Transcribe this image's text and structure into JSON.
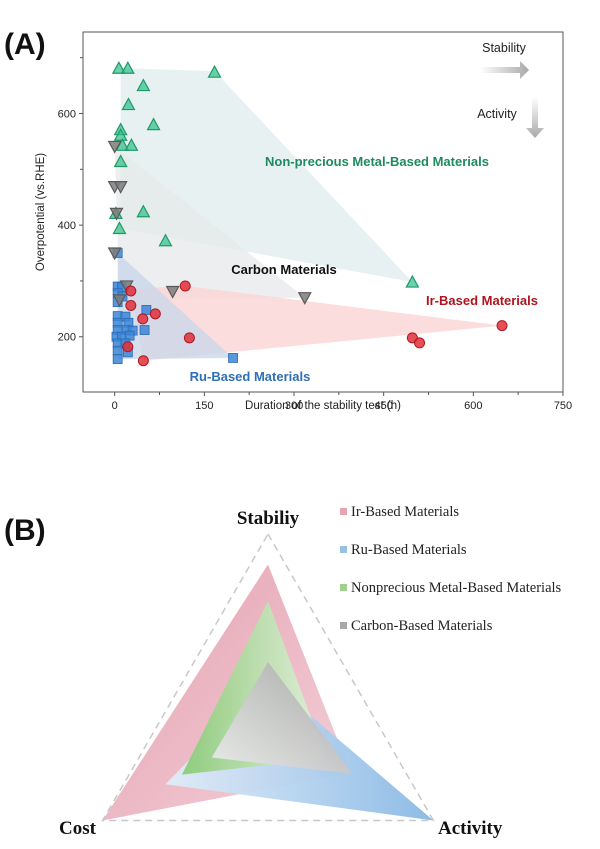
{
  "panels": {
    "a_label": "(A)",
    "b_label": "(B)"
  },
  "chart_data": [
    {
      "type": "scatter",
      "panel": "A",
      "xlabel": "Duration of the stability test (h)",
      "ylabel": "Overpotential (vs.RHE)",
      "xlim": [
        -53,
        750
      ],
      "ylim": [
        101,
        746
      ],
      "xticks": [
        0,
        150,
        300,
        450,
        600,
        750
      ],
      "xtick_labels": [
        "0",
        "150",
        "300",
        "450",
        "600",
        "750"
      ],
      "yticks": [
        200,
        400,
        600
      ],
      "ytick_labels": [
        "200",
        "400",
        "600"
      ],
      "grid": false,
      "annotations": {
        "stability": "Stability",
        "activity": "Activity"
      },
      "series": [
        {
          "name": "Non-precious Metal-Based Materials",
          "label": "Non-precious Metal-Based Materials",
          "marker": "triangle-up",
          "color": "#2fbf87",
          "label_color": "#1f8a5f",
          "region_color": "#e3efee",
          "region": [
            [
              10,
              681
            ],
            [
              167,
              676
            ],
            [
              498,
              298
            ],
            [
              10,
              394
            ]
          ],
          "points": [
            [
              7,
              681
            ],
            [
              22,
              681
            ],
            [
              167,
              674
            ],
            [
              48,
              650
            ],
            [
              23,
              616
            ],
            [
              65,
              580
            ],
            [
              10,
              571
            ],
            [
              10,
              561
            ],
            [
              13,
              543
            ],
            [
              28,
              543
            ],
            [
              10,
              514
            ],
            [
              2,
              421
            ],
            [
              48,
              424
            ],
            [
              8,
              394
            ],
            [
              85,
              372
            ],
            [
              498,
              298
            ]
          ]
        },
        {
          "name": "Carbon Materials",
          "label": "Carbon Materials",
          "marker": "triangle-down",
          "color": "#7d7d7d",
          "label_color": "#111111",
          "region_color": "#e6e8ea",
          "region": [
            [
              0,
              541
            ],
            [
              318,
              270
            ],
            [
              8,
              266
            ]
          ],
          "points": [
            [
              0,
              541
            ],
            [
              0,
              469
            ],
            [
              10,
              469
            ],
            [
              3,
              421
            ],
            [
              0,
              350
            ],
            [
              20,
              291
            ],
            [
              8,
              266
            ],
            [
              97,
              281
            ],
            [
              318,
              270
            ]
          ]
        },
        {
          "name": "Ir-Based Materials",
          "label": "Ir-Based Materials",
          "marker": "circle",
          "color": "#e0303a",
          "label_color": "#b0141e",
          "region_color": "#fbd4d4",
          "region": [
            [
              27,
              286
            ],
            [
              118,
              291
            ],
            [
              648,
              220
            ],
            [
              48,
              157
            ]
          ],
          "points": [
            [
              27,
              282
            ],
            [
              118,
              291
            ],
            [
              27,
              256
            ],
            [
              68,
              241
            ],
            [
              47,
              232
            ],
            [
              125,
              198
            ],
            [
              22,
              182
            ],
            [
              48,
              157
            ],
            [
              498,
              198
            ],
            [
              510,
              189
            ],
            [
              648,
              220
            ]
          ]
        },
        {
          "name": "Ru-Based Materials",
          "label": "Ru-Based Materials",
          "marker": "square",
          "color": "#3d86d6",
          "label_color": "#2f6fb5",
          "region_color": "#c7d6ea",
          "region": [
            [
              5,
              350
            ],
            [
              198,
              162
            ],
            [
              5,
              160
            ]
          ],
          "points": [
            [
              5,
              350
            ],
            [
              5,
              290
            ],
            [
              12,
              289
            ],
            [
              5,
              278
            ],
            [
              13,
              272
            ],
            [
              5,
              262
            ],
            [
              5,
              237
            ],
            [
              18,
              236
            ],
            [
              5,
              225
            ],
            [
              23,
              225
            ],
            [
              5,
              212
            ],
            [
              20,
              212
            ],
            [
              30,
              211
            ],
            [
              3,
              200
            ],
            [
              12,
              200
            ],
            [
              25,
              202
            ],
            [
              5,
              188
            ],
            [
              18,
              188
            ],
            [
              5,
              175
            ],
            [
              22,
              172
            ],
            [
              5,
              160
            ],
            [
              53,
              248
            ],
            [
              50,
              212
            ],
            [
              198,
              162
            ]
          ]
        }
      ]
    },
    {
      "type": "radar",
      "panel": "B",
      "axes": [
        "Stabiliy",
        "Activity",
        "Cost"
      ],
      "range": [
        0,
        1
      ],
      "series": [
        {
          "name": "Ir-Based Materials",
          "values": [
            0.84,
            0.5,
            1.0
          ],
          "color": "#e8a3b1"
        },
        {
          "name": "Ru-Based Materials",
          "values": [
            0.24,
            1.0,
            0.62
          ],
          "color": "#96c0e6"
        },
        {
          "name": "Nonprecious Metal-Based Materials",
          "values": [
            0.65,
            0.35,
            0.52
          ],
          "color": "#9fd18d"
        },
        {
          "name": "Carbon-Based Materials",
          "values": [
            0.33,
            0.51,
            0.34
          ],
          "color": "#a8a8a8"
        }
      ],
      "legend": [
        "Ir-Based Materials",
        "Ru-Based Materials",
        "Nonprecious Metal-Based Materials",
        "Carbon-Based Materials"
      ],
      "legend_position": "top-right"
    }
  ]
}
